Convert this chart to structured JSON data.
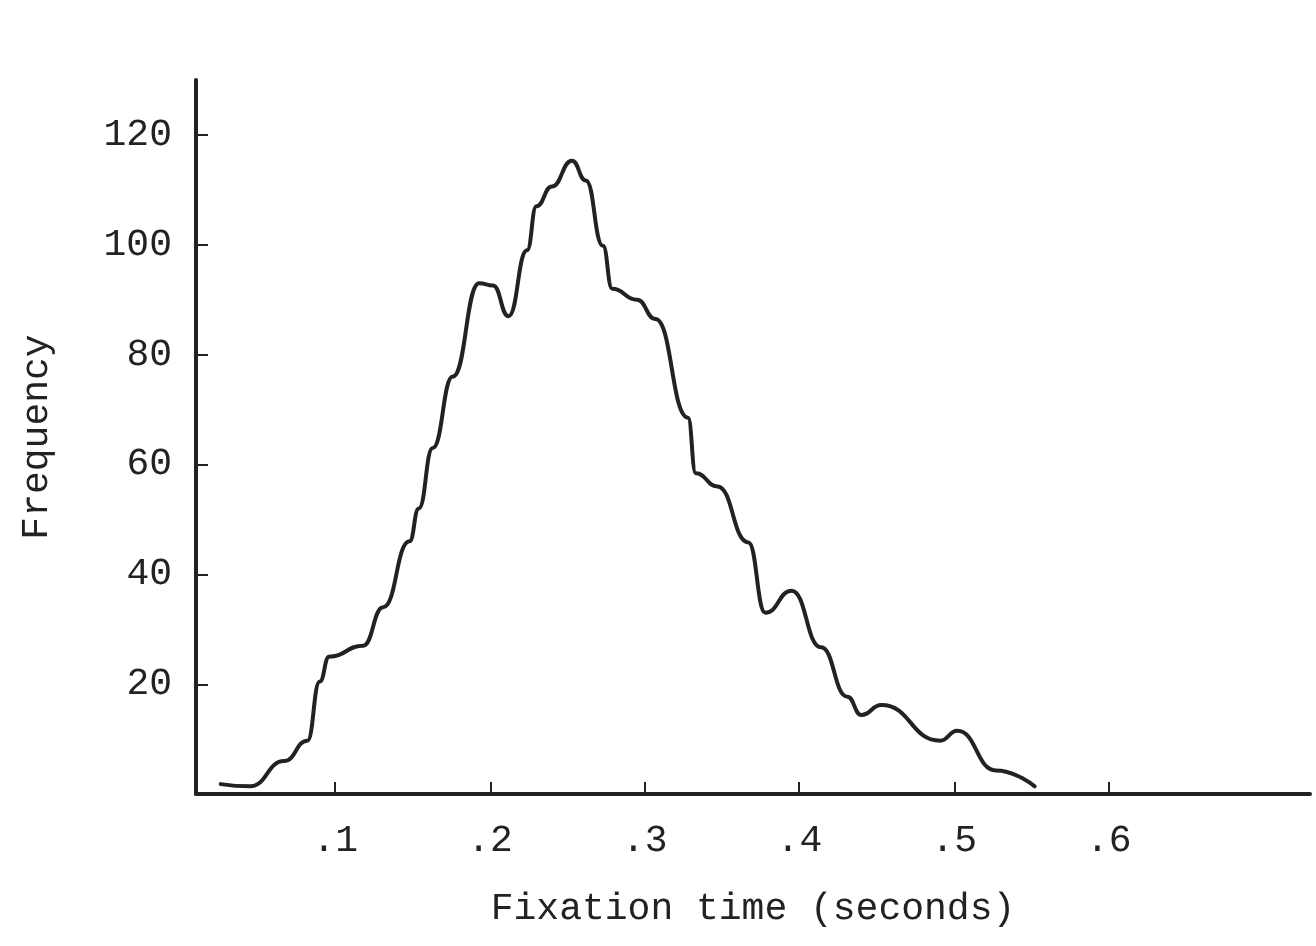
{
  "chart_data": {
    "type": "line",
    "xlabel": "Fixation time (seconds)",
    "ylabel": "Frequency",
    "x": [
      0.026,
      0.045,
      0.067,
      0.082,
      0.09,
      0.096,
      0.118,
      0.131,
      0.148,
      0.154,
      0.163,
      0.176,
      0.193,
      0.202,
      0.212,
      0.224,
      0.23,
      0.24,
      0.253,
      0.262,
      0.273,
      0.279,
      0.295,
      0.307,
      0.328,
      0.333,
      0.347,
      0.367,
      0.378,
      0.395,
      0.414,
      0.431,
      0.44,
      0.453,
      0.491,
      0.502,
      0.527,
      0.552
    ],
    "values": [
      1.8,
      1.4,
      6,
      9.7,
      20.5,
      25,
      27,
      34,
      46,
      52,
      63,
      76,
      93,
      92.6,
      87,
      99,
      107,
      110.6,
      115.3,
      111.7,
      99.8,
      92,
      90,
      86.5,
      68.5,
      58.4,
      56,
      45.8,
      33,
      37,
      26.7,
      17.7,
      14.4,
      16.2,
      9.7,
      11.5,
      4.3,
      1.4
    ],
    "color": "#222222",
    "line_style": "solid",
    "marker": "none",
    "grid": false,
    "xlim": [
      0.01,
      0.73
    ],
    "xticks": [
      {
        "value": 0.1,
        "label": ".1"
      },
      {
        "value": 0.2,
        "label": ".2"
      },
      {
        "value": 0.3,
        "label": ".3"
      },
      {
        "value": 0.4,
        "label": ".4"
      },
      {
        "value": 0.5,
        "label": ".5"
      },
      {
        "value": 0.6,
        "label": ".6"
      }
    ],
    "ylim": [
      0,
      130
    ],
    "yticks": [
      20,
      40,
      60,
      80,
      100,
      120
    ]
  }
}
